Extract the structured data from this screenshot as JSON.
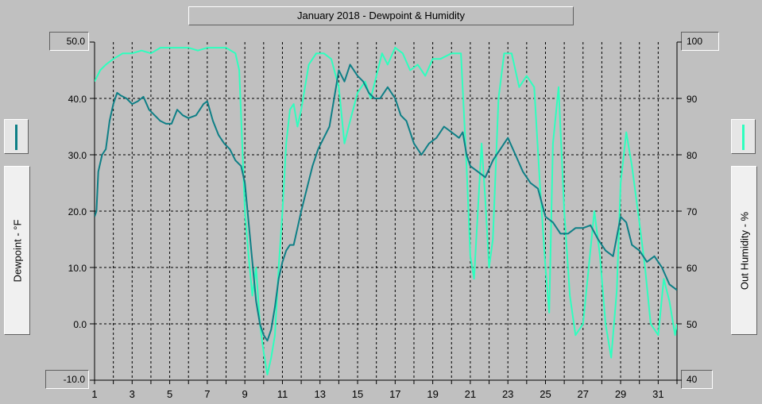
{
  "chart_data": {
    "type": "line",
    "title": "January 2018 - Dewpoint & Humidity",
    "xlabel": "",
    "x_ticks": [
      "1",
      "3",
      "5",
      "7",
      "9",
      "11",
      "13",
      "15",
      "17",
      "19",
      "21",
      "23",
      "25",
      "27",
      "29",
      "31"
    ],
    "xlim": [
      1,
      32
    ],
    "left_axis": {
      "label": "Dewpoint - °F",
      "range": [
        -10,
        50
      ],
      "ticks": [
        "50.0",
        "40.0",
        "30.0",
        "20.0",
        "10.0",
        "0.0",
        "-10.0"
      ]
    },
    "right_axis": {
      "label": "Out Humidity - %",
      "range": [
        40,
        100
      ],
      "ticks": [
        "100",
        "90",
        "80",
        "70",
        "60",
        "50",
        "40"
      ]
    },
    "grid": true,
    "series": [
      {
        "axis": "left",
        "color": "#0e7f86",
        "points": [
          [
            1.0,
            19
          ],
          [
            1.1,
            20
          ],
          [
            1.2,
            27
          ],
          [
            1.4,
            30
          ],
          [
            1.6,
            31
          ],
          [
            1.8,
            36
          ],
          [
            2.0,
            39
          ],
          [
            2.2,
            41
          ],
          [
            2.4,
            40.5
          ],
          [
            2.7,
            40
          ],
          [
            3.0,
            39
          ],
          [
            3.3,
            39.5
          ],
          [
            3.6,
            40.3
          ],
          [
            3.9,
            38
          ],
          [
            4.2,
            37
          ],
          [
            4.5,
            36
          ],
          [
            4.8,
            35.5
          ],
          [
            5.1,
            35.5
          ],
          [
            5.4,
            38
          ],
          [
            5.7,
            37
          ],
          [
            6.0,
            36.5
          ],
          [
            6.4,
            37
          ],
          [
            6.8,
            39
          ],
          [
            7.0,
            39.5
          ],
          [
            7.3,
            36
          ],
          [
            7.6,
            33.5
          ],
          [
            7.9,
            32
          ],
          [
            8.2,
            31
          ],
          [
            8.5,
            29
          ],
          [
            8.8,
            28
          ],
          [
            9.0,
            25
          ],
          [
            9.2,
            18
          ],
          [
            9.4,
            11
          ],
          [
            9.6,
            4
          ],
          [
            9.8,
            0
          ],
          [
            10.0,
            -2
          ],
          [
            10.2,
            -3
          ],
          [
            10.4,
            -1
          ],
          [
            10.6,
            3
          ],
          [
            10.8,
            8
          ],
          [
            11.0,
            11
          ],
          [
            11.2,
            13
          ],
          [
            11.4,
            14
          ],
          [
            11.6,
            14
          ],
          [
            11.8,
            17
          ],
          [
            12.0,
            20
          ],
          [
            12.3,
            24
          ],
          [
            12.6,
            28
          ],
          [
            12.9,
            31
          ],
          [
            13.2,
            33
          ],
          [
            13.5,
            35
          ],
          [
            13.8,
            41
          ],
          [
            14.0,
            45
          ],
          [
            14.3,
            43
          ],
          [
            14.6,
            46
          ],
          [
            15.0,
            44
          ],
          [
            15.3,
            43
          ],
          [
            15.6,
            41
          ],
          [
            15.9,
            40
          ],
          [
            16.2,
            40
          ],
          [
            16.6,
            42
          ],
          [
            17.0,
            40
          ],
          [
            17.3,
            37
          ],
          [
            17.6,
            36
          ],
          [
            18.0,
            32
          ],
          [
            18.4,
            30
          ],
          [
            18.8,
            32
          ],
          [
            19.2,
            33
          ],
          [
            19.6,
            35
          ],
          [
            20.0,
            34
          ],
          [
            20.4,
            33
          ],
          [
            20.6,
            34
          ],
          [
            20.8,
            30
          ],
          [
            21.0,
            28
          ],
          [
            21.4,
            27
          ],
          [
            21.8,
            26
          ],
          [
            22.2,
            29
          ],
          [
            22.6,
            31
          ],
          [
            23.0,
            33
          ],
          [
            23.4,
            30
          ],
          [
            23.8,
            27
          ],
          [
            24.2,
            25
          ],
          [
            24.6,
            24
          ],
          [
            25.0,
            19
          ],
          [
            25.4,
            18
          ],
          [
            25.8,
            16
          ],
          [
            26.2,
            16
          ],
          [
            26.6,
            17
          ],
          [
            27.0,
            17
          ],
          [
            27.4,
            17.5
          ],
          [
            27.8,
            15
          ],
          [
            28.2,
            13
          ],
          [
            28.6,
            12
          ],
          [
            29.0,
            19
          ],
          [
            29.3,
            18
          ],
          [
            29.6,
            14
          ],
          [
            30.0,
            13
          ],
          [
            30.4,
            11
          ],
          [
            30.8,
            12
          ],
          [
            31.2,
            10
          ],
          [
            31.6,
            7
          ],
          [
            32.0,
            6
          ]
        ]
      },
      {
        "axis": "right",
        "color": "#2dffbe",
        "points": [
          [
            1.0,
            93
          ],
          [
            1.3,
            95
          ],
          [
            1.6,
            96
          ],
          [
            2.0,
            97
          ],
          [
            2.5,
            98
          ],
          [
            3.0,
            98
          ],
          [
            3.5,
            98.5
          ],
          [
            4.0,
            98
          ],
          [
            4.5,
            99
          ],
          [
            5.0,
            99
          ],
          [
            6.0,
            99
          ],
          [
            6.5,
            98.5
          ],
          [
            7.0,
            99
          ],
          [
            7.5,
            99
          ],
          [
            8.0,
            99
          ],
          [
            8.5,
            98
          ],
          [
            8.7,
            95
          ],
          [
            9.0,
            70
          ],
          [
            9.2,
            62
          ],
          [
            9.4,
            55
          ],
          [
            9.6,
            60
          ],
          [
            9.8,
            50
          ],
          [
            10.0,
            45
          ],
          [
            10.2,
            41
          ],
          [
            10.4,
            44
          ],
          [
            10.6,
            48
          ],
          [
            10.8,
            60
          ],
          [
            11.0,
            70
          ],
          [
            11.2,
            82
          ],
          [
            11.4,
            88
          ],
          [
            11.6,
            89
          ],
          [
            11.8,
            85
          ],
          [
            12.0,
            88
          ],
          [
            12.4,
            96
          ],
          [
            12.8,
            98
          ],
          [
            13.2,
            98
          ],
          [
            13.6,
            97
          ],
          [
            14.0,
            92
          ],
          [
            14.3,
            82
          ],
          [
            14.6,
            86
          ],
          [
            15.0,
            91
          ],
          [
            15.4,
            93
          ],
          [
            15.7,
            90
          ],
          [
            16.0,
            94
          ],
          [
            16.3,
            98
          ],
          [
            16.6,
            96
          ],
          [
            17.0,
            99
          ],
          [
            17.4,
            98
          ],
          [
            17.8,
            95
          ],
          [
            18.2,
            96
          ],
          [
            18.6,
            94
          ],
          [
            19.0,
            97
          ],
          [
            19.4,
            97
          ],
          [
            20.0,
            98
          ],
          [
            20.5,
            98
          ],
          [
            20.8,
            78
          ],
          [
            21.0,
            62
          ],
          [
            21.2,
            58
          ],
          [
            21.4,
            70
          ],
          [
            21.6,
            82
          ],
          [
            21.8,
            72
          ],
          [
            22.0,
            60
          ],
          [
            22.2,
            65
          ],
          [
            22.5,
            90
          ],
          [
            22.8,
            98
          ],
          [
            23.2,
            98
          ],
          [
            23.6,
            92
          ],
          [
            24.0,
            94
          ],
          [
            24.4,
            92
          ],
          [
            24.7,
            75
          ],
          [
            25.0,
            60
          ],
          [
            25.2,
            52
          ],
          [
            25.4,
            82
          ],
          [
            25.7,
            92
          ],
          [
            26.0,
            70
          ],
          [
            26.3,
            55
          ],
          [
            26.6,
            48
          ],
          [
            27.0,
            50
          ],
          [
            27.3,
            60
          ],
          [
            27.6,
            70
          ],
          [
            27.9,
            62
          ],
          [
            28.2,
            50
          ],
          [
            28.5,
            44
          ],
          [
            28.8,
            56
          ],
          [
            29.0,
            75
          ],
          [
            29.3,
            84
          ],
          [
            29.6,
            78
          ],
          [
            30.0,
            68
          ],
          [
            30.3,
            60
          ],
          [
            30.6,
            50
          ],
          [
            31.0,
            48
          ],
          [
            31.3,
            58
          ],
          [
            31.6,
            54
          ],
          [
            31.9,
            48
          ],
          [
            32.0,
            50
          ]
        ]
      }
    ]
  }
}
